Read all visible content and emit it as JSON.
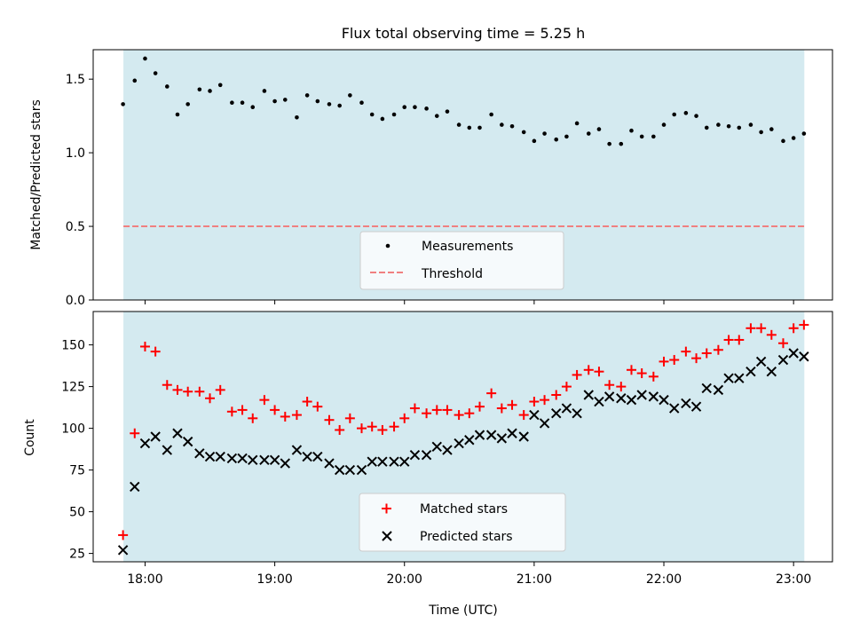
{
  "colors": {
    "shade": "#d4eaf0",
    "measurement": "#000000",
    "threshold": "#f08080",
    "matched": "#ff0000",
    "predicted": "#000000",
    "legend_bg": "#f6fafc"
  },
  "chart_data": [
    {
      "type": "scatter",
      "title": "Flux total observing time = 5.25 h",
      "ylabel": "Matched/Predicted stars",
      "xlabel": "",
      "xlim": [
        17.6,
        23.3
      ],
      "ylim": [
        0,
        1.7
      ],
      "yticks": [
        0.0,
        0.5,
        1.0,
        1.5
      ],
      "ytick_labels": [
        "0.0",
        "0.5",
        "1.0",
        "1.5"
      ],
      "xticks": [
        18,
        19,
        20,
        21,
        22,
        23
      ],
      "shaded_span": [
        17.833,
        23.083
      ],
      "grid": false,
      "legend": "lower-center",
      "series": [
        {
          "name": "Measurements",
          "kind": "dots",
          "x": [
            17.83,
            17.92,
            18.0,
            18.08,
            18.17,
            18.25,
            18.33,
            18.42,
            18.5,
            18.58,
            18.67,
            18.75,
            18.83,
            18.92,
            19.0,
            19.08,
            19.17,
            19.25,
            19.33,
            19.42,
            19.5,
            19.58,
            19.67,
            19.75,
            19.83,
            19.92,
            20.0,
            20.08,
            20.17,
            20.25,
            20.33,
            20.42,
            20.5,
            20.58,
            20.67,
            20.75,
            20.83,
            20.92,
            21.0,
            21.08,
            21.17,
            21.25,
            21.33,
            21.42,
            21.5,
            21.58,
            21.67,
            21.75,
            21.83,
            21.92,
            22.0,
            22.08,
            22.17,
            22.25,
            22.33,
            22.42,
            22.5,
            22.58,
            22.67,
            22.75,
            22.83,
            22.92,
            23.0,
            23.08
          ],
          "y": [
            1.33,
            1.49,
            1.64,
            1.54,
            1.45,
            1.26,
            1.33,
            1.43,
            1.42,
            1.46,
            1.34,
            1.34,
            1.31,
            1.42,
            1.35,
            1.36,
            1.24,
            1.39,
            1.35,
            1.33,
            1.32,
            1.39,
            1.34,
            1.26,
            1.23,
            1.26,
            1.31,
            1.31,
            1.3,
            1.25,
            1.28,
            1.19,
            1.17,
            1.17,
            1.26,
            1.19,
            1.18,
            1.14,
            1.08,
            1.13,
            1.09,
            1.11,
            1.2,
            1.13,
            1.16,
            1.06,
            1.06,
            1.15,
            1.11,
            1.11,
            1.19,
            1.26,
            1.27,
            1.25,
            1.17,
            1.19,
            1.18,
            1.17,
            1.19,
            1.14,
            1.16,
            1.08,
            1.1,
            1.13
          ]
        },
        {
          "name": "Threshold",
          "kind": "dashed-line",
          "value": 0.5
        }
      ]
    },
    {
      "type": "scatter",
      "title": "",
      "ylabel": "Count",
      "xlabel": "Time (UTC)",
      "xlim": [
        17.6,
        23.3
      ],
      "ylim": [
        20,
        170
      ],
      "yticks": [
        25,
        50,
        75,
        100,
        125,
        150
      ],
      "ytick_labels": [
        "25",
        "50",
        "75",
        "100",
        "125",
        "150"
      ],
      "xticks": [
        18,
        19,
        20,
        21,
        22,
        23
      ],
      "xtick_labels": [
        "18:00",
        "19:00",
        "20:00",
        "21:00",
        "22:00",
        "23:00"
      ],
      "shaded_span": [
        17.833,
        23.083
      ],
      "grid": false,
      "legend": "lower-center",
      "series": [
        {
          "name": "Matched stars",
          "kind": "plus",
          "x": [
            17.83,
            17.92,
            18.0,
            18.08,
            18.17,
            18.25,
            18.33,
            18.42,
            18.5,
            18.58,
            18.67,
            18.75,
            18.83,
            18.92,
            19.0,
            19.08,
            19.17,
            19.25,
            19.33,
            19.42,
            19.5,
            19.58,
            19.67,
            19.75,
            19.83,
            19.92,
            20.0,
            20.08,
            20.17,
            20.25,
            20.33,
            20.42,
            20.5,
            20.58,
            20.67,
            20.75,
            20.83,
            20.92,
            21.0,
            21.08,
            21.17,
            21.25,
            21.33,
            21.42,
            21.5,
            21.58,
            21.67,
            21.75,
            21.83,
            21.92,
            22.0,
            22.08,
            22.17,
            22.25,
            22.33,
            22.42,
            22.5,
            22.58,
            22.67,
            22.75,
            22.83,
            22.92,
            23.0,
            23.08
          ],
          "y": [
            36,
            97,
            149,
            146,
            126,
            123,
            122,
            122,
            118,
            123,
            110,
            111,
            106,
            117,
            111,
            107,
            108,
            116,
            113,
            105,
            99,
            106,
            100,
            101,
            99,
            101,
            106,
            112,
            109,
            111,
            111,
            108,
            109,
            113,
            121,
            112,
            114,
            108,
            116,
            117,
            120,
            125,
            132,
            135,
            134,
            126,
            125,
            135,
            133,
            131,
            140,
            141,
            146,
            142,
            145,
            147,
            153,
            153,
            160,
            160,
            156,
            151,
            160,
            162
          ]
        },
        {
          "name": "Predicted stars",
          "kind": "x",
          "x": [
            17.83,
            17.92,
            18.0,
            18.08,
            18.17,
            18.25,
            18.33,
            18.42,
            18.5,
            18.58,
            18.67,
            18.75,
            18.83,
            18.92,
            19.0,
            19.08,
            19.17,
            19.25,
            19.33,
            19.42,
            19.5,
            19.58,
            19.67,
            19.75,
            19.83,
            19.92,
            20.0,
            20.08,
            20.17,
            20.25,
            20.33,
            20.42,
            20.5,
            20.58,
            20.67,
            20.75,
            20.83,
            20.92,
            21.0,
            21.08,
            21.17,
            21.25,
            21.33,
            21.42,
            21.5,
            21.58,
            21.67,
            21.75,
            21.83,
            21.92,
            22.0,
            22.08,
            22.17,
            22.25,
            22.33,
            22.42,
            22.5,
            22.58,
            22.67,
            22.75,
            22.83,
            22.92,
            23.0,
            23.08
          ],
          "y": [
            27,
            65,
            91,
            95,
            87,
            97,
            92,
            85,
            83,
            83,
            82,
            82,
            81,
            81,
            81,
            79,
            87,
            83,
            83,
            79,
            75,
            75,
            75,
            80,
            80,
            80,
            80,
            84,
            84,
            89,
            87,
            91,
            93,
            96,
            96,
            94,
            97,
            95,
            108,
            103,
            109,
            112,
            109,
            120,
            116,
            119,
            118,
            117,
            120,
            119,
            117,
            112,
            115,
            113,
            124,
            123,
            130,
            130,
            134,
            140,
            134,
            141,
            145,
            143
          ]
        }
      ]
    }
  ]
}
